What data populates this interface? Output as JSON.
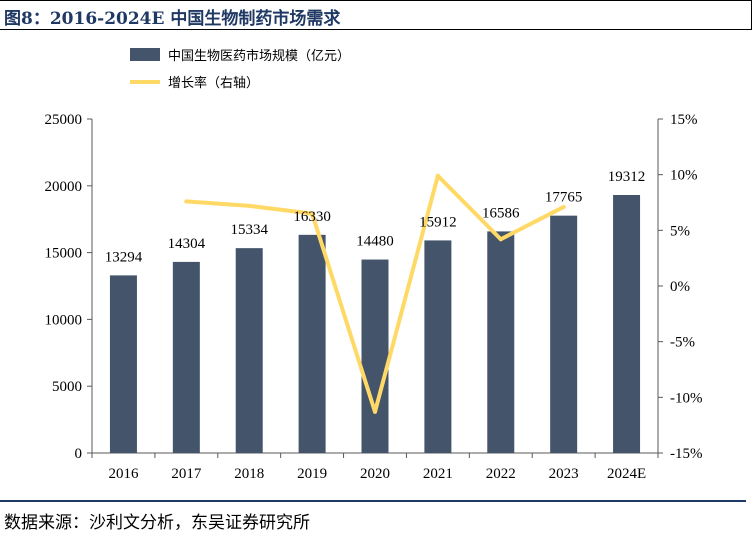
{
  "header": {
    "title": "图8：2016-2024E 中国生物制药市场需求"
  },
  "footer": {
    "source": "数据来源：沙利文分析，东吴证券研究所"
  },
  "colors": {
    "bar": "#44546a",
    "line": "#ffd966",
    "title": "#1f3864",
    "axis": "#595959"
  },
  "chart_data": {
    "type": "bar",
    "title": "图8：2016-2024E 中国生物制药市场需求",
    "categories": [
      "2016",
      "2017",
      "2018",
      "2019",
      "2020",
      "2021",
      "2022",
      "2023",
      "2024E"
    ],
    "series": [
      {
        "name": "中国生物医药市场规模（亿元）",
        "type": "bar",
        "axis": "left",
        "values": [
          13294,
          14304,
          15334,
          16330,
          14480,
          15912,
          16586,
          17765,
          19312
        ]
      },
      {
        "name": "增长率（右轴）",
        "type": "line",
        "axis": "right",
        "values": [
          null,
          7.6,
          7.2,
          6.5,
          -11.3,
          9.9,
          4.2,
          7.1,
          null
        ]
      }
    ],
    "y_left": {
      "min": 0,
      "max": 25000,
      "ticks": [
        "0",
        "5000",
        "10000",
        "15000",
        "20000",
        "25000"
      ]
    },
    "y_right": {
      "min": -15,
      "max": 15,
      "ticks": [
        "-15%",
        "-10%",
        "-5%",
        "0%",
        "5%",
        "10%",
        "15%"
      ]
    },
    "data_labels": [
      "13294",
      "14304",
      "15334",
      "16330",
      "14480",
      "15912",
      "16586",
      "17765",
      "19312"
    ],
    "legend_position": "top-left",
    "grid": false
  }
}
